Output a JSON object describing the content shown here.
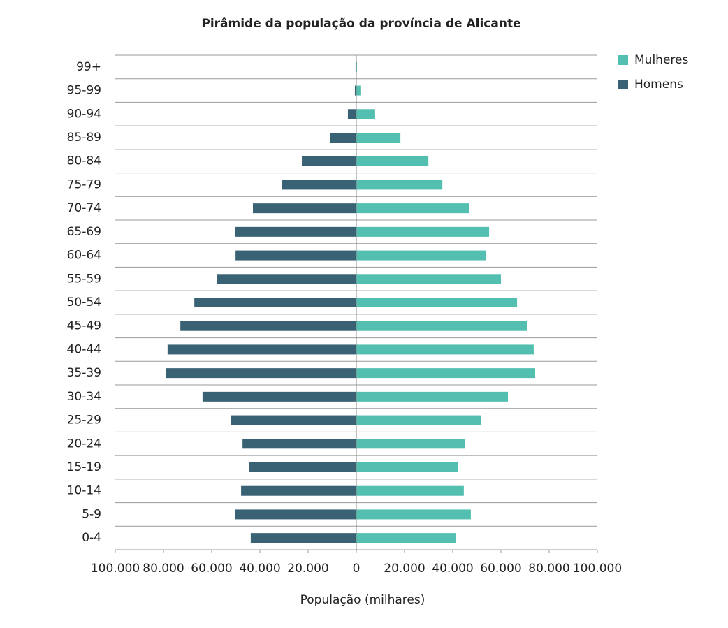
{
  "chart_data": {
    "type": "pyramid",
    "title": "Pirâmide da população da província de Alicante",
    "x_label": "População (milhares)",
    "categories": [
      "0-4",
      "5-9",
      "10-14",
      "15-19",
      "20-24",
      "25-29",
      "30-34",
      "35-39",
      "40-44",
      "45-49",
      "50-54",
      "55-59",
      "60-64",
      "65-69",
      "70-74",
      "75-79",
      "80-84",
      "85-89",
      "90-94",
      "95-99",
      "99+"
    ],
    "series": [
      {
        "name": "Mulheres",
        "color": "#52bfb0",
        "values": [
          41200,
          47500,
          44600,
          42300,
          45200,
          51600,
          62900,
          74200,
          73600,
          71000,
          66700,
          60000,
          53900,
          55100,
          46700,
          35700,
          29900,
          18300,
          7800,
          1700,
          300
        ]
      },
      {
        "name": "Homens",
        "color": "#3a6275",
        "values": [
          -43800,
          -50400,
          -47800,
          -44600,
          -47200,
          -51900,
          -63800,
          -79100,
          -78300,
          -73000,
          -67200,
          -57700,
          -50100,
          -50400,
          -42900,
          -31000,
          -22600,
          -11000,
          -3500,
          -600,
          -300
        ]
      }
    ],
    "xlim": [
      -100000,
      100000
    ],
    "xticks": [
      {
        "value": -100000,
        "label": "100.000"
      },
      {
        "value": -80000,
        "label": "80.000"
      },
      {
        "value": -60000,
        "label": "60.000"
      },
      {
        "value": -40000,
        "label": "40.000"
      },
      {
        "value": -20000,
        "label": "20.000"
      },
      0,
      {
        "value": 20000,
        "label": "20.000"
      },
      {
        "value": 40000,
        "label": "40.000"
      },
      {
        "value": 60000,
        "label": "60.000"
      },
      {
        "value": 80000,
        "label": "80.000"
      },
      {
        "value": 100000,
        "label": "100.000"
      }
    ],
    "legend": "top-right",
    "grid": true
  }
}
